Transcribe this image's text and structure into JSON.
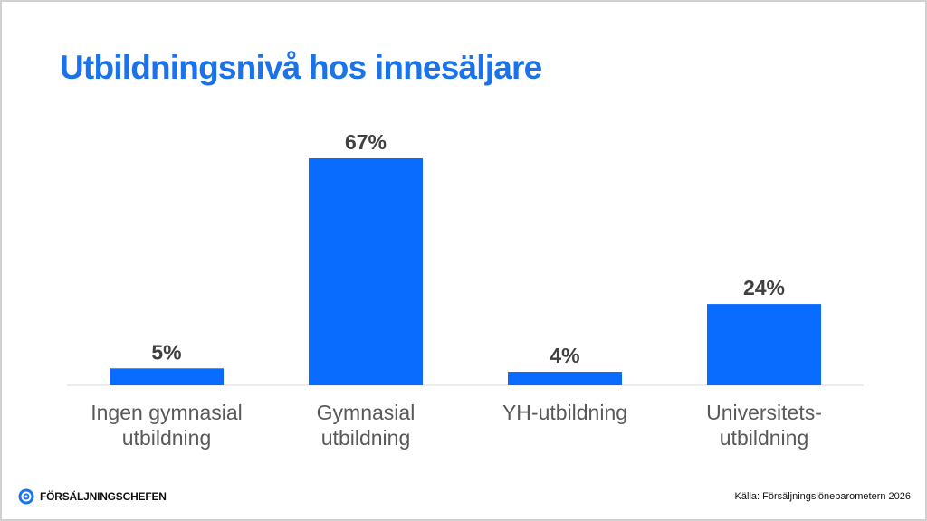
{
  "title": "Utbildningsnivå hos innesäljare",
  "chart_data": {
    "type": "bar",
    "categories": [
      "Ingen gymnasial\nutbildning",
      "Gymnasial\nutbildning",
      "YH-utbildning",
      "Universitets-\nutbildning"
    ],
    "values": [
      5,
      67,
      4,
      24
    ],
    "value_labels": [
      "5%",
      "67%",
      "4%",
      "24%"
    ],
    "ylim": [
      0,
      67
    ],
    "grid": false,
    "bar_color": "#0a6cff"
  },
  "footer": {
    "logo_text": "FÖRSÄLJNINGSCHEFEN",
    "source": "Källa: Försäljningslönebarometern 2026"
  },
  "colors": {
    "title": "#1a73e8",
    "bar": "#0a6cff",
    "label": "#595959",
    "value_label": "#404040"
  }
}
